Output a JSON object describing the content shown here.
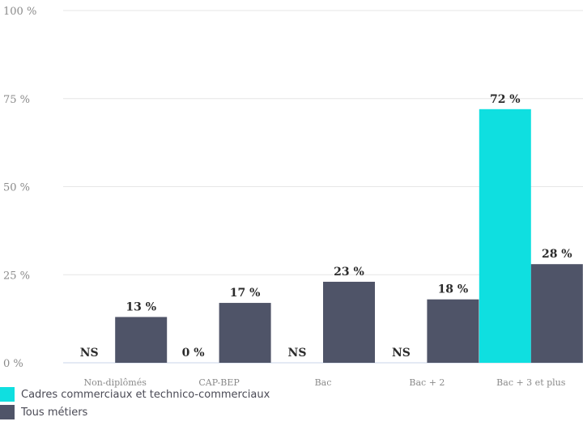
{
  "chart_data": {
    "type": "bar",
    "categories": [
      "Non-diplômés",
      "CAP-BEP",
      "Bac",
      "Bac + 2",
      "Bac + 3 et plus"
    ],
    "series": [
      {
        "name": "Cadres commerciaux et technico-commerciaux",
        "values": [
          null,
          0,
          null,
          null,
          72
        ],
        "labels": [
          "NS",
          "0 %",
          "NS",
          "NS",
          "72 %"
        ],
        "color": "#0fdfe0"
      },
      {
        "name": "Tous métiers",
        "values": [
          13,
          17,
          23,
          18,
          28
        ],
        "labels": [
          "13 %",
          "17 %",
          "23 %",
          "18 %",
          "28 %"
        ],
        "color": "#4f5468"
      }
    ],
    "yticks": [
      "0 %",
      "25 %",
      "50 %",
      "75 %",
      "100 %"
    ],
    "ylim": [
      0,
      100
    ],
    "grid": true,
    "legend_position": "bottom-left"
  }
}
